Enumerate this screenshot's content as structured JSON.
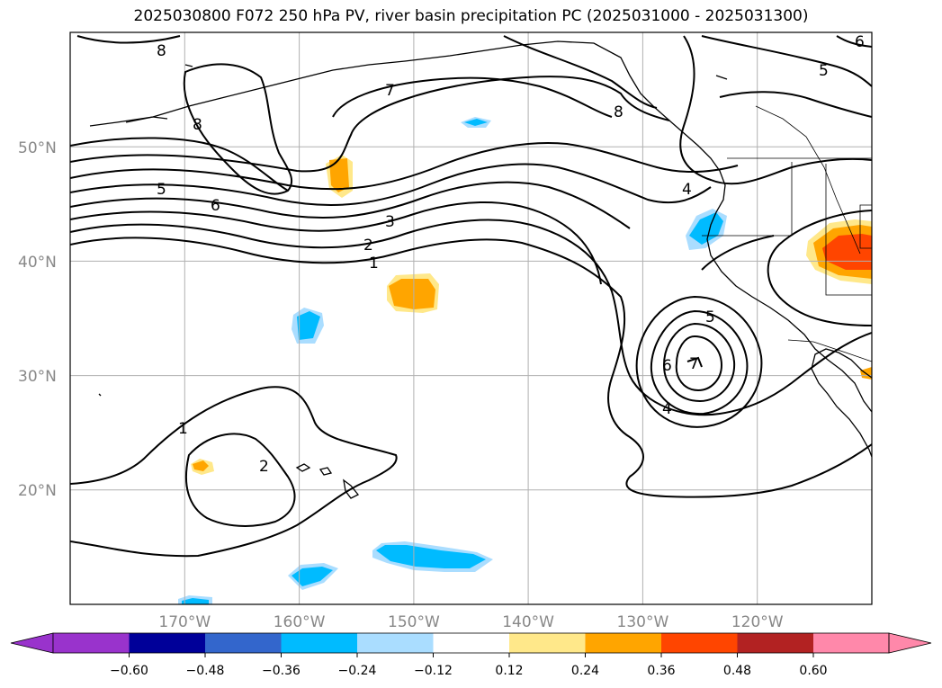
{
  "title": "2025030800 F072 250 hPa PV, river basin precipitation PC (2025031000 - 2025031300)",
  "map": {
    "lon_range": [
      -180,
      -110
    ],
    "lat_range": [
      10,
      60
    ],
    "lat_ticks": [
      {
        "value": 20,
        "label": "20°N"
      },
      {
        "value": 30,
        "label": "30°N"
      },
      {
        "value": 40,
        "label": "40°N"
      },
      {
        "value": 50,
        "label": "50°N"
      }
    ],
    "lon_ticks": [
      {
        "value": -170,
        "label": "170°W"
      },
      {
        "value": -160,
        "label": "160°W"
      },
      {
        "value": -150,
        "label": "150°W"
      },
      {
        "value": -140,
        "label": "140°W"
      },
      {
        "value": -130,
        "label": "130°W"
      },
      {
        "value": -120,
        "label": "120°W"
      }
    ],
    "grid": true,
    "contour_labels": [
      "1",
      "2",
      "3",
      "4",
      "5",
      "6",
      "7",
      "8"
    ]
  },
  "colorbar": {
    "ticks": [
      "−0.60",
      "−0.48",
      "−0.36",
      "−0.24",
      "−0.12",
      "0.12",
      "0.24",
      "0.36",
      "0.48",
      "0.60"
    ],
    "colors": {
      "under": "#9933cc",
      "b1": "#000099",
      "b2": "#3366cc",
      "b3": "#00bbff",
      "b4": "#aaddff",
      "b5": "#ffffff",
      "b6": "#ffe88a",
      "b7": "#ffa500",
      "b8": "#ff4500",
      "b9": "#b22222",
      "over": "#ff88aa"
    }
  }
}
